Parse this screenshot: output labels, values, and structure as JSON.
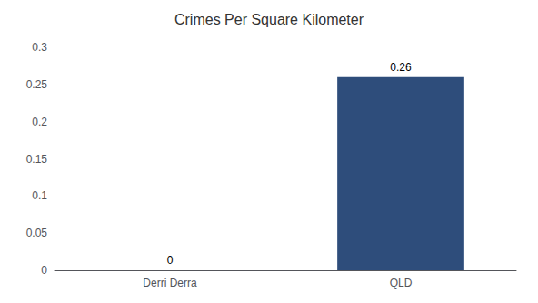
{
  "chart_data": {
    "type": "bar",
    "title": "Crimes Per Square Kilometer",
    "categories": [
      "Derri Derra",
      "QLD"
    ],
    "values": [
      0,
      0.26
    ],
    "color": "#2e4d7b",
    "ylim": [
      0,
      0.3
    ],
    "yticks": [
      0,
      0.05,
      0.1,
      0.15,
      0.2,
      0.25,
      0.3
    ],
    "grid": false,
    "data_labels": true
  }
}
